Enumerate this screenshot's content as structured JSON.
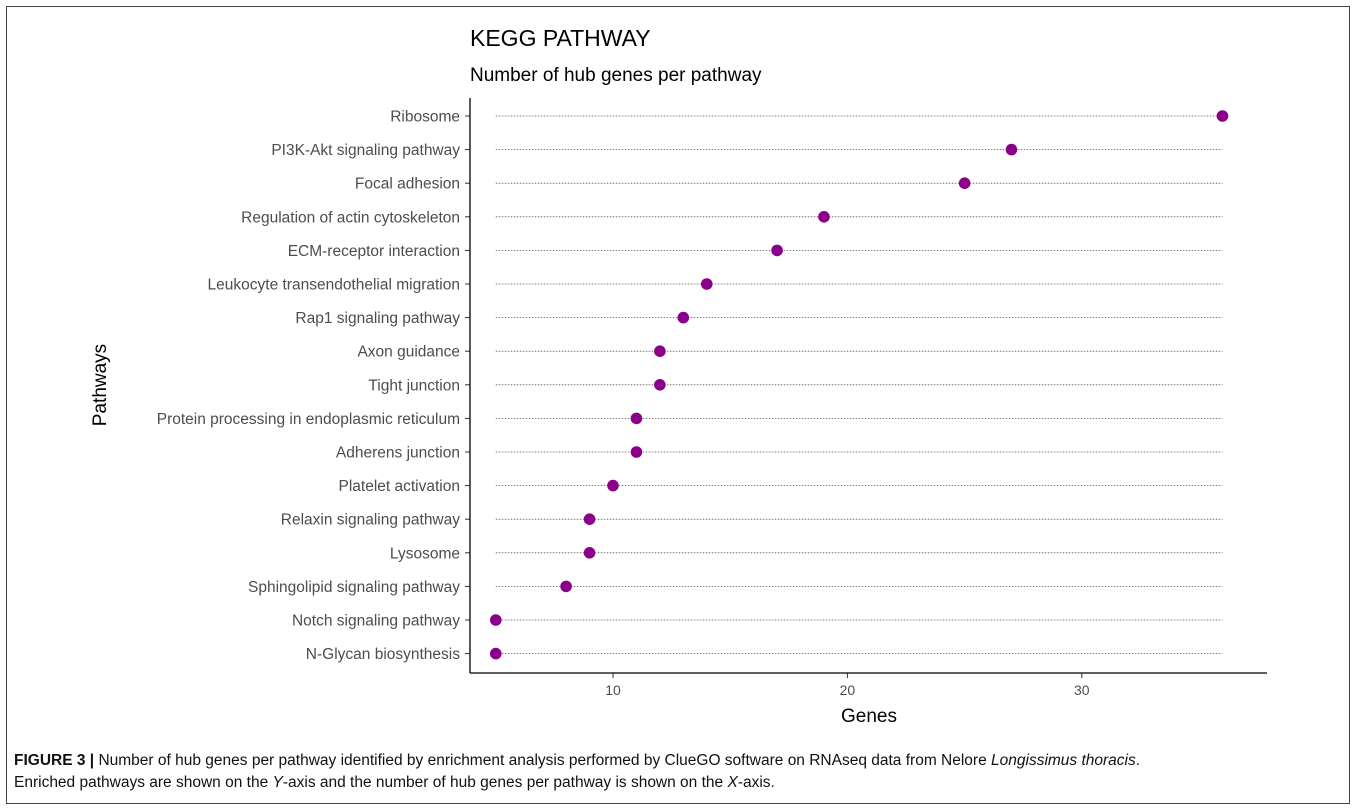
{
  "chart_data": {
    "type": "scatter",
    "title": "KEGG PATHWAY",
    "subtitle": "Number of hub genes per pathway",
    "xlabel": "Genes",
    "ylabel": "Pathways",
    "xlim": [
      3.9,
      37.9
    ],
    "xticks": [
      10,
      20,
      30
    ],
    "point_color": "#8b008b",
    "categories": [
      "Ribosome",
      "PI3K-Akt signaling pathway",
      "Focal adhesion",
      "Regulation of actin cytoskeleton",
      "ECM-receptor interaction",
      "Leukocyte transendothelial migration",
      "Rap1 signaling pathway",
      "Axon guidance",
      "Tight junction",
      "Protein processing in endoplasmic reticulum",
      "Adherens junction",
      "Platelet activation",
      "Relaxin signaling pathway",
      "Lysosome",
      "Sphingolipid signaling pathway",
      "Notch signaling pathway",
      "N-Glycan biosynthesis"
    ],
    "values": [
      36,
      27,
      25,
      19,
      17,
      14,
      13,
      12,
      12,
      11,
      11,
      10,
      9,
      9,
      8,
      5,
      5
    ]
  },
  "caption": {
    "label": "FIGURE 3 |",
    "line1_pre": " Number of hub genes per pathway identified by enrichment analysis performed by ClueGO software on RNAseq data from Nelore ",
    "line1_italic": "Longissimus thoracis",
    "line1_post": ".",
    "line2_pre": "Enriched pathways are shown on the ",
    "line2_y": "Y",
    "line2_mid": "-axis and the number of hub genes per pathway is shown on the ",
    "line2_x": "X",
    "line2_post": "-axis."
  }
}
